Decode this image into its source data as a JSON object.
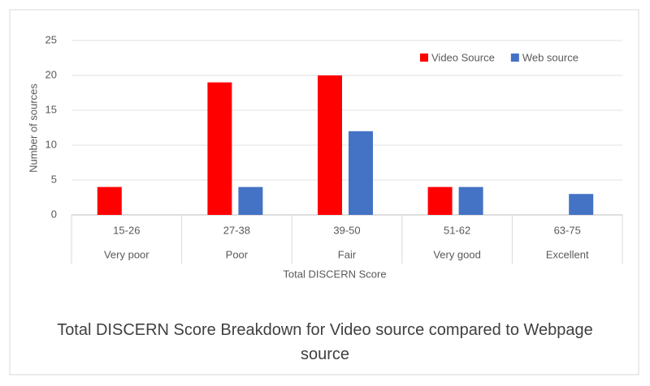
{
  "chart_data": {
    "type": "bar",
    "title": "Total DISCERN Score Breakdown for Video source compared to Webpage source",
    "x_label": "Total DISCERN Score",
    "y_label": "Number of sources",
    "categories": [
      "15-26",
      "27-38",
      "39-50",
      "51-62",
      "63-75"
    ],
    "category_groups": [
      "Very poor",
      "Poor",
      "Fair",
      "Very good",
      "Excellent"
    ],
    "series": [
      {
        "name": "Video Source",
        "color": "#ff0000",
        "values": [
          4,
          19,
          20,
          4,
          0
        ]
      },
      {
        "name": "Web source",
        "color": "#4472c4",
        "values": [
          0,
          4,
          12,
          4,
          3
        ]
      }
    ],
    "ylim": [
      0,
      25
    ],
    "yticks": [
      0,
      5,
      10,
      15,
      20,
      25
    ],
    "grid": true,
    "legend": "top-right"
  }
}
